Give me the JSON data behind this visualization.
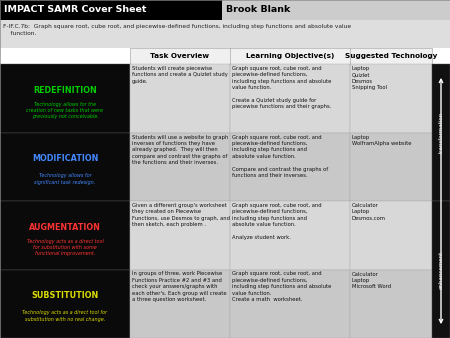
{
  "title_left": "IMPACT SAMR Cover Sheet",
  "title_right": "Brook Blank",
  "standard": "F-IF.C.7b:  Graph square root, cube root, and piecewise-defined functions, including step functions and absolute value\n    function.",
  "col_headers": [
    "Task Overview",
    "Learning Objective(s)",
    "Suggested Technology"
  ],
  "rows": [
    {
      "level": "REDEFINITION",
      "level_sub": "Technology allows for the\ncreation of new tasks that were\npreviously not conceivable.",
      "level_color": "#00cc00",
      "level_sub_color": "#00cc00",
      "bg": "#0a0a0a",
      "task": "Students will create piecewise\nfunctions and create a Quizlet study\nguide.",
      "objective": "Graph square root, cube root, and\npiecewise-defined functions,\nincluding step functions and absolute\nvalue function.\n\nCreate a Quizlet study guide for\npiecewise functions and their graphs.",
      "technology": "Laptop\nQuizlet\nDesmos\nSnipping Tool",
      "cell_bg": "#d8d8d8"
    },
    {
      "level": "MODIFICATION",
      "level_sub": "Technology allows for\nsignificant task redesign.",
      "level_color": "#4488ff",
      "level_sub_color": "#4488ff",
      "bg": "#0a0a0a",
      "task": "Students will use a website to graph\ninverses of functions they have\nalready graphed.  They will then\ncompare and contrast the graphs of\nthe functions and their inverses.",
      "objective": "Graph square root, cube root, and\npiecewise-defined functions,\nincluding step functions and\nabsolute value function.\n\nCompare and contrast the graphs of\nfunctions and their inverses.",
      "technology": "Laptop\nWolframAlpha website",
      "cell_bg": "#c8c8c8"
    },
    {
      "level": "AUGMENTATION",
      "level_sub": "Technology acts as a direct tool\nfor substitution with some\nfunctional improvement.",
      "level_color": "#ff3333",
      "level_sub_color": "#ff3333",
      "bg": "#0a0a0a",
      "task": "Given a different group's worksheet\nthey created on Piecewise\nFunctions, use Desmos to graph, and\nthen sketch, each problem .",
      "objective": "Graph square root, cube root, and\npiecewise-defined functions,\nincluding step functions and\nabsolute value function.\n\nAnalyze student work.",
      "technology": "Calculator\nLaptop\nDesmos.com",
      "cell_bg": "#d8d8d8"
    },
    {
      "level": "SUBSTITUTION",
      "level_sub": "Technology acts as a direct tool for\nsubstitution with no real change.",
      "level_color": "#dddd00",
      "level_sub_color": "#dddd00",
      "bg": "#0a0a0a",
      "task": "In groups of three, work Piecewise\nFunctions Practice #2 and #3 and\ncheck your answers/graphs with\neach other's. Each group will create\na three question worksheet.",
      "objective": "Graph square root, cube root, and\npiecewise-defined functions,\nincluding step functions and absolute\nvalue function.\nCreate a math  worksheet.",
      "technology": "Calculator\nLaptop\nMicrosoft Word",
      "cell_bg": "#c8c8c8"
    }
  ],
  "sidebar_top": "transformation",
  "sidebar_bottom": "enhancement"
}
